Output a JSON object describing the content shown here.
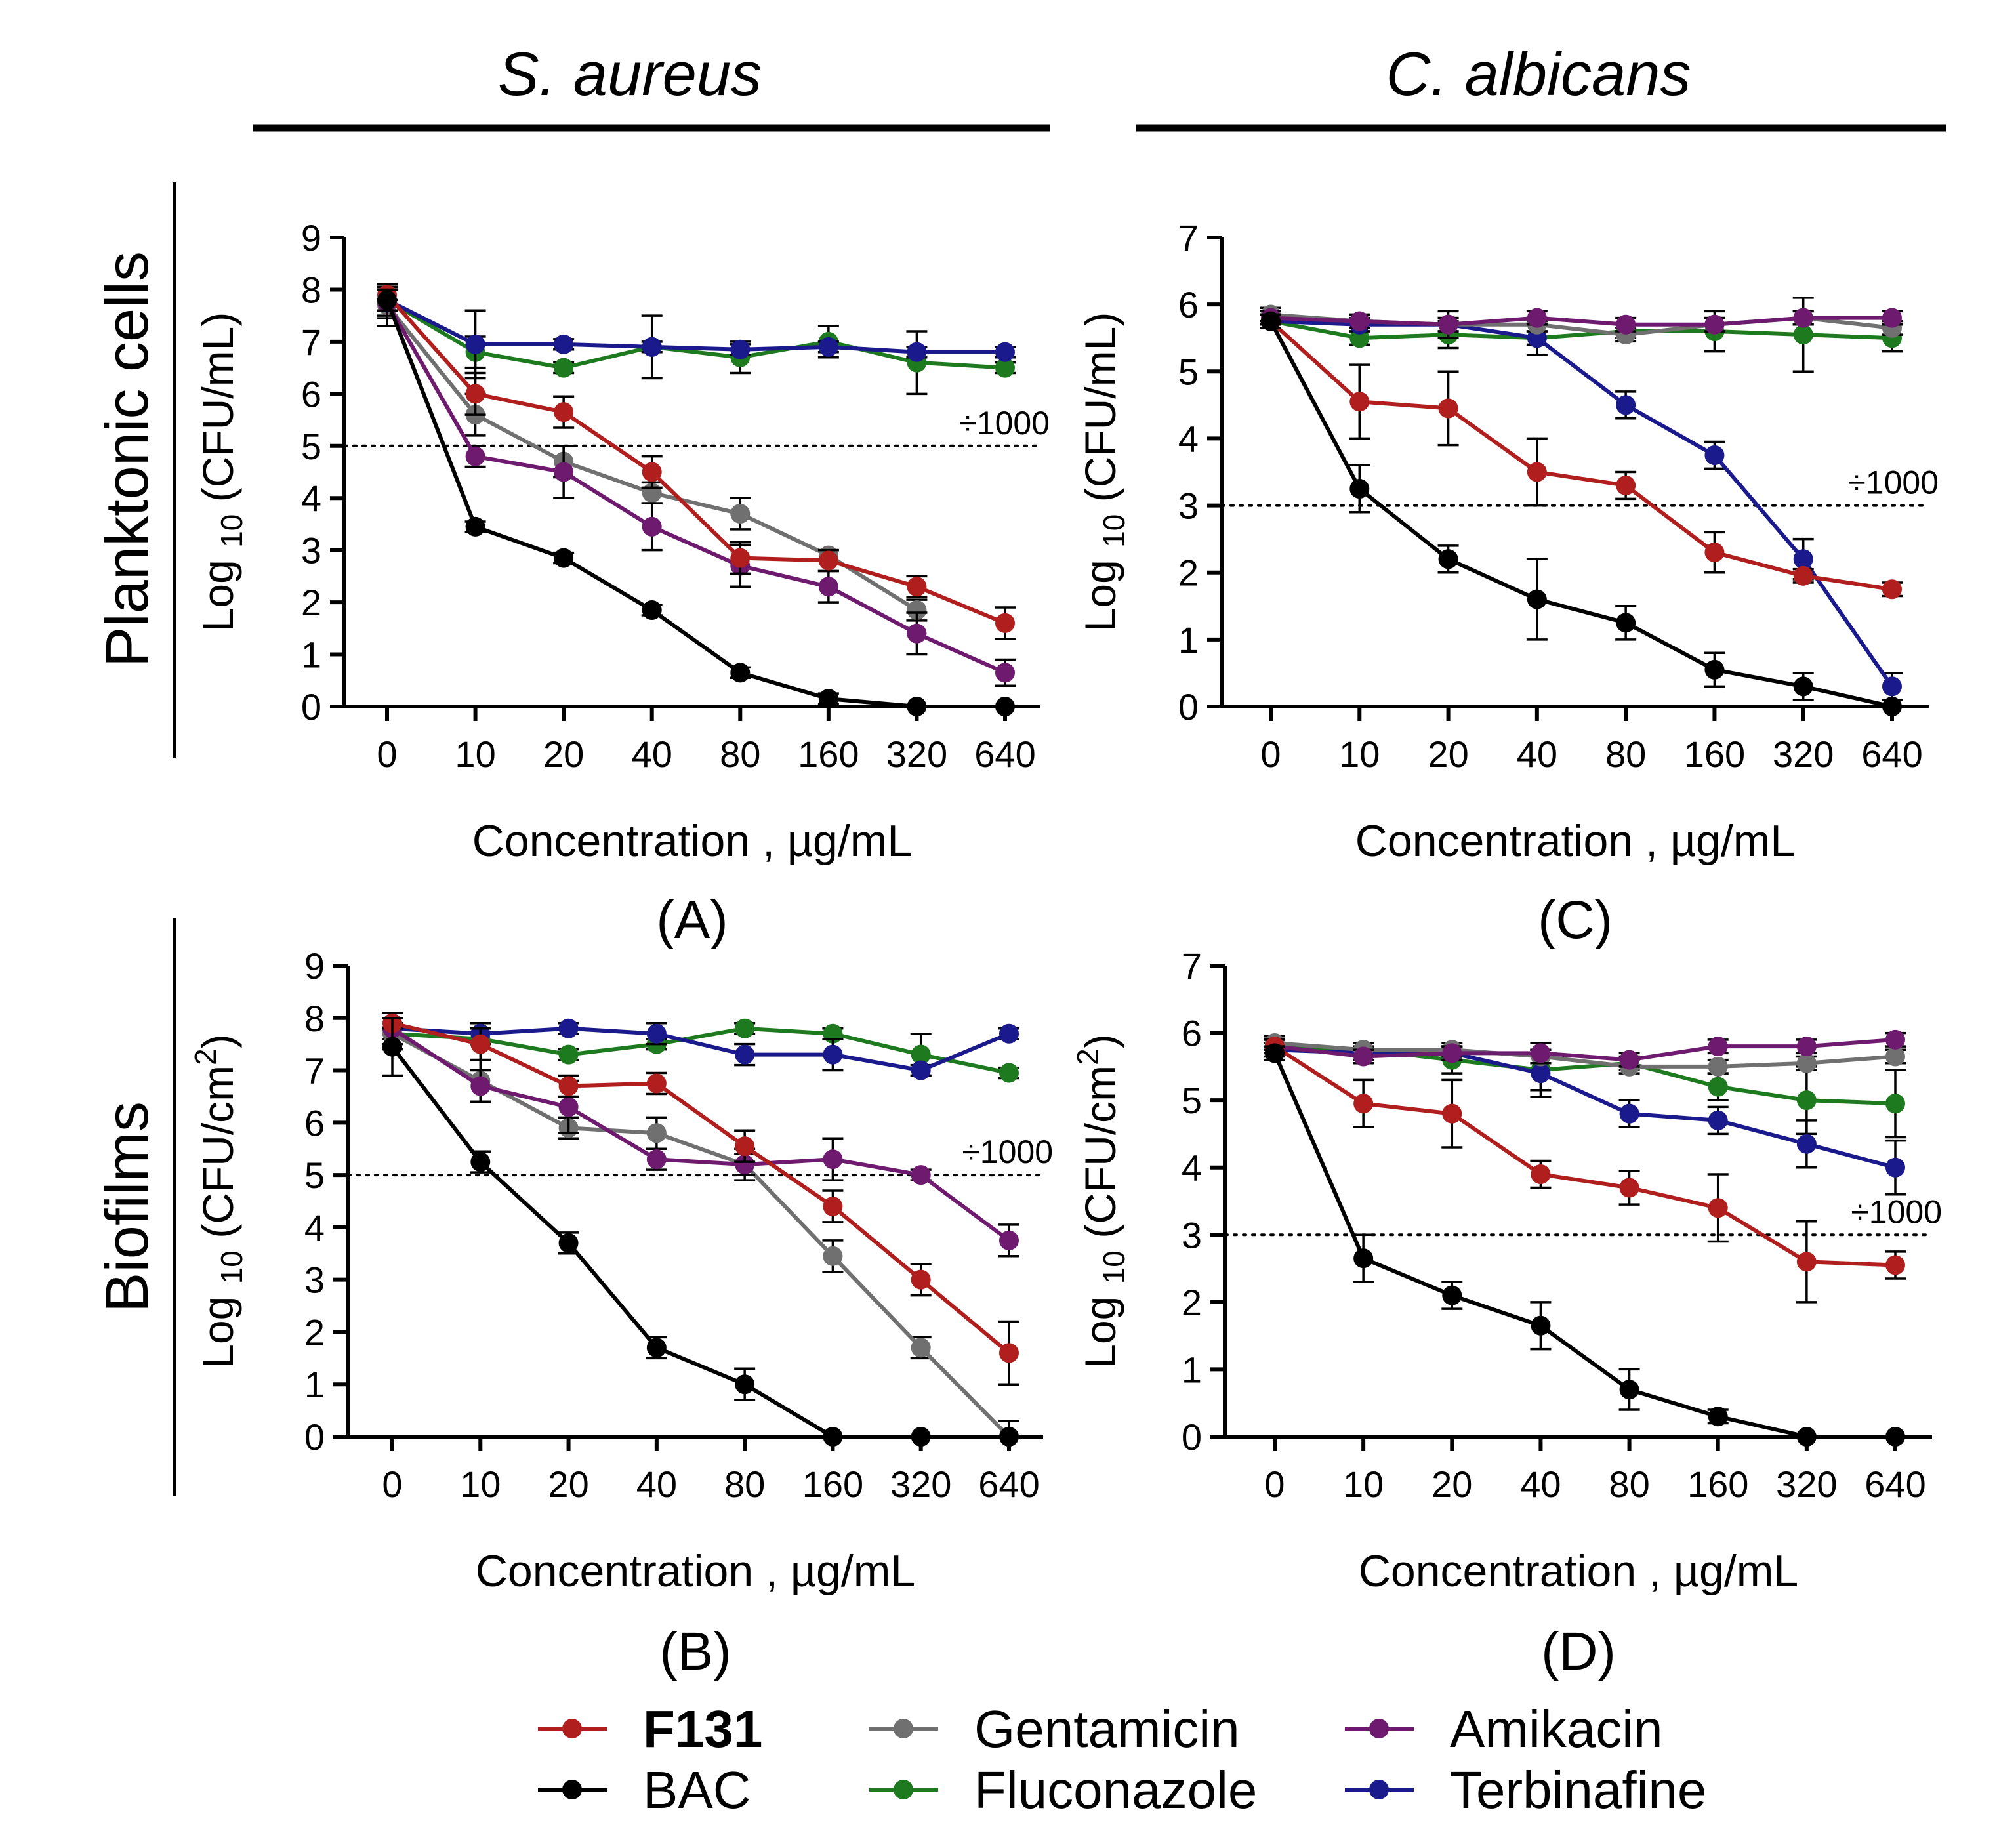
{
  "headers": {
    "left_species": "S. aureus",
    "right_species": "C. albicans",
    "row_top": "Planktonic cells",
    "row_bottom": "Biofilms"
  },
  "colors": {
    "F131": "#b01e1e",
    "BAC": "#000000",
    "Gentamicin": "#707070",
    "Fluconazole": "#1e7a1e",
    "Amikacin": "#6e1a6e",
    "Terbinafine": "#1a1a8c"
  },
  "legend": [
    {
      "key": "F131",
      "label": "F131",
      "bold": true
    },
    {
      "key": "BAC",
      "label": "BAC",
      "bold": false
    },
    {
      "key": "Gentamicin",
      "label": "Gentamicin",
      "bold": false
    },
    {
      "key": "Fluconazole",
      "label": "Fluconazole",
      "bold": false
    },
    {
      "key": "Amikacin",
      "label": "Amikacin",
      "bold": false
    },
    {
      "key": "Terbinafine",
      "label": "Terbinafine",
      "bold": false
    }
  ],
  "chart_data": [
    {
      "id": "A",
      "panel_label": "(A)",
      "type": "line",
      "xlabel": "Concentration , µg/mL",
      "ylabel_main": "Log",
      "ylabel_sub": "10",
      "ylabel_unit": "(CFU/mL)",
      "ylabel_sup": "",
      "categories": [
        "0",
        "10",
        "20",
        "40",
        "80",
        "160",
        "320",
        "640"
      ],
      "ylim": [
        0,
        9
      ],
      "yticks": [
        0,
        1,
        2,
        3,
        4,
        5,
        6,
        7,
        8,
        9
      ],
      "threshold": 5,
      "threshold_label": "÷1000",
      "series": [
        {
          "name": "Fluconazole",
          "values": [
            7.8,
            6.8,
            6.5,
            6.9,
            6.7,
            7.0,
            6.6,
            6.5
          ],
          "err": [
            0.3,
            0.3,
            0.1,
            0.6,
            0.3,
            0.3,
            0.6,
            0.1
          ]
        },
        {
          "name": "Terbinafine",
          "values": [
            7.8,
            6.95,
            6.95,
            6.9,
            6.85,
            6.9,
            6.8,
            6.8
          ],
          "err": [
            0.2,
            0.65,
            0.1,
            0.1,
            0.1,
            0.1,
            0.1,
            0.1
          ]
        },
        {
          "name": "Gentamicin",
          "values": [
            7.7,
            5.6,
            4.7,
            4.1,
            3.7,
            2.9,
            1.85,
            null
          ],
          "err": [
            0.4,
            0.4,
            0.3,
            0.2,
            0.3,
            0.1,
            0.2,
            0
          ]
        },
        {
          "name": "Amikacin",
          "values": [
            7.75,
            4.8,
            4.5,
            3.45,
            2.7,
            2.3,
            1.4,
            0.65
          ],
          "err": [
            0.3,
            0.2,
            0.5,
            0.45,
            0.4,
            0.3,
            0.4,
            0.25
          ]
        },
        {
          "name": "F131",
          "values": [
            7.9,
            6.0,
            5.65,
            4.5,
            2.85,
            2.8,
            2.3,
            1.6
          ],
          "err": [
            0.1,
            0.4,
            0.3,
            0.3,
            0.3,
            0.2,
            0.2,
            0.3
          ]
        },
        {
          "name": "BAC",
          "values": [
            7.8,
            3.45,
            2.85,
            1.85,
            0.65,
            0.15,
            0.0,
            0.0
          ],
          "err": [
            0.2,
            0.1,
            0.1,
            0.1,
            0.1,
            0.1,
            0,
            0
          ]
        }
      ]
    },
    {
      "id": "B",
      "panel_label": "(B)",
      "type": "line",
      "xlabel": "Concentration , µg/mL",
      "ylabel_main": "Log",
      "ylabel_sub": "10",
      "ylabel_unit": "(CFU/cm",
      "ylabel_sup": "2",
      "categories": [
        "0",
        "10",
        "20",
        "40",
        "80",
        "160",
        "320",
        "640"
      ],
      "ylim": [
        0,
        9
      ],
      "yticks": [
        0,
        1,
        2,
        3,
        4,
        5,
        6,
        7,
        8,
        9
      ],
      "threshold": 5,
      "threshold_label": "÷1000",
      "series": [
        {
          "name": "Fluconazole",
          "values": [
            7.7,
            7.6,
            7.3,
            7.5,
            7.8,
            7.7,
            7.3,
            6.95
          ],
          "err": [
            0.1,
            0.1,
            0.1,
            0.1,
            0.1,
            0.1,
            0.4,
            0.1
          ]
        },
        {
          "name": "Terbinafine",
          "values": [
            7.8,
            7.7,
            7.8,
            7.7,
            7.3,
            7.3,
            7.0,
            7.7
          ],
          "err": [
            0.1,
            0.2,
            0.1,
            0.2,
            0.2,
            0.3,
            0.1,
            0.1
          ]
        },
        {
          "name": "Gentamicin",
          "values": [
            7.7,
            6.8,
            5.9,
            5.8,
            5.2,
            3.45,
            1.7,
            0.0
          ],
          "err": [
            0.3,
            0.4,
            0.2,
            0.3,
            0.3,
            0.3,
            0.2,
            0.3
          ]
        },
        {
          "name": "Amikacin",
          "values": [
            7.8,
            6.7,
            6.3,
            5.3,
            5.2,
            5.3,
            5.0,
            3.75
          ],
          "err": [
            0.3,
            0.3,
            0.5,
            0.2,
            0.2,
            0.4,
            0.1,
            0.3
          ]
        },
        {
          "name": "F131",
          "values": [
            7.9,
            7.5,
            6.7,
            6.75,
            5.55,
            4.4,
            3.0,
            1.6
          ],
          "err": [
            0.1,
            0.3,
            0.2,
            0.2,
            0.3,
            0.3,
            0.3,
            0.6
          ]
        },
        {
          "name": "BAC",
          "values": [
            7.45,
            5.25,
            3.7,
            1.7,
            1.0,
            0.0,
            0.0,
            0.0
          ],
          "err": [
            0.55,
            0.2,
            0.2,
            0.2,
            0.3,
            0,
            0,
            0
          ]
        }
      ]
    },
    {
      "id": "C",
      "panel_label": "(C)",
      "type": "line",
      "xlabel": "Concentration , µg/mL",
      "ylabel_main": "Log",
      "ylabel_sub": "10",
      "ylabel_unit": "(CFU/mL)",
      "ylabel_sup": "",
      "categories": [
        "0",
        "10",
        "20",
        "40",
        "80",
        "160",
        "320",
        "640"
      ],
      "ylim": [
        0,
        7
      ],
      "yticks": [
        0,
        1,
        2,
        3,
        4,
        5,
        6,
        7
      ],
      "threshold": 3,
      "threshold_label": "÷1000",
      "series": [
        {
          "name": "Fluconazole",
          "values": [
            5.75,
            5.5,
            5.55,
            5.5,
            5.6,
            5.6,
            5.55,
            5.5
          ],
          "err": [
            0.1,
            0.1,
            0.2,
            0.1,
            0.1,
            0.3,
            0.55,
            0.2
          ]
        },
        {
          "name": "Terbinafine",
          "values": [
            5.75,
            5.7,
            5.7,
            5.5,
            4.5,
            3.75,
            2.2,
            0.3
          ],
          "err": [
            0.1,
            0.1,
            0.2,
            0.25,
            0.2,
            0.2,
            0.3,
            0.2
          ]
        },
        {
          "name": "Gentamicin",
          "values": [
            5.85,
            5.75,
            5.7,
            5.7,
            5.55,
            5.7,
            5.8,
            5.65
          ],
          "err": [
            0.1,
            0.1,
            0.1,
            0.1,
            0.1,
            0.1,
            0.1,
            0.1
          ]
        },
        {
          "name": "Amikacin",
          "values": [
            5.8,
            5.75,
            5.7,
            5.8,
            5.7,
            5.7,
            5.8,
            5.8
          ],
          "err": [
            0.1,
            0.1,
            0.1,
            0.1,
            0.1,
            0.1,
            0.1,
            0.1
          ]
        },
        {
          "name": "F131",
          "values": [
            5.75,
            4.55,
            4.45,
            3.5,
            3.3,
            2.3,
            1.95,
            1.75
          ],
          "err": [
            0.1,
            0.55,
            0.55,
            0.5,
            0.2,
            0.3,
            0.1,
            0.1
          ]
        },
        {
          "name": "BAC",
          "values": [
            5.75,
            3.25,
            2.2,
            1.6,
            1.25,
            0.55,
            0.3,
            0.0
          ],
          "err": [
            0.1,
            0.35,
            0.2,
            0.6,
            0.25,
            0.25,
            0.2,
            0
          ]
        }
      ]
    },
    {
      "id": "D",
      "panel_label": "(D)",
      "type": "line",
      "xlabel": "Concentration , µg/mL",
      "ylabel_main": "Log",
      "ylabel_sub": "10",
      "ylabel_unit": "(CFU/cm",
      "ylabel_sup": "2",
      "categories": [
        "0",
        "10",
        "20",
        "40",
        "80",
        "160",
        "320",
        "640"
      ],
      "ylim": [
        0,
        7
      ],
      "yticks": [
        0,
        1,
        2,
        3,
        4,
        5,
        6,
        7
      ],
      "threshold": 3,
      "threshold_label": "÷1000",
      "series": [
        {
          "name": "Fluconazole",
          "values": [
            5.8,
            5.75,
            5.6,
            5.45,
            5.55,
            5.2,
            5.0,
            4.95
          ],
          "err": [
            0.1,
            0.1,
            0.2,
            0.3,
            0.1,
            0.2,
            0.5,
            0.5
          ]
        },
        {
          "name": "Terbinafine",
          "values": [
            5.75,
            5.7,
            5.7,
            5.4,
            4.8,
            4.7,
            4.35,
            4.0
          ],
          "err": [
            0.1,
            0.1,
            0.1,
            0.35,
            0.2,
            0.2,
            0.35,
            0.4
          ]
        },
        {
          "name": "Gentamicin",
          "values": [
            5.85,
            5.75,
            5.75,
            5.65,
            5.5,
            5.5,
            5.55,
            5.65
          ],
          "err": [
            0.1,
            0.1,
            0.1,
            0.1,
            0.1,
            0.1,
            0.1,
            0.1
          ]
        },
        {
          "name": "Amikacin",
          "values": [
            5.8,
            5.65,
            5.7,
            5.7,
            5.6,
            5.8,
            5.8,
            5.9
          ],
          "err": [
            0.1,
            0.1,
            0.1,
            0.15,
            0.1,
            0.1,
            0.1,
            0.1
          ]
        },
        {
          "name": "F131",
          "values": [
            5.8,
            4.95,
            4.8,
            3.9,
            3.7,
            3.4,
            2.6,
            2.55
          ],
          "err": [
            0.1,
            0.35,
            0.5,
            0.2,
            0.25,
            0.5,
            0.6,
            0.2
          ]
        },
        {
          "name": "BAC",
          "values": [
            5.7,
            2.65,
            2.1,
            1.65,
            0.7,
            0.3,
            0.0,
            0.0
          ],
          "err": [
            0.1,
            0.35,
            0.2,
            0.35,
            0.3,
            0.1,
            0,
            0
          ]
        }
      ]
    }
  ]
}
